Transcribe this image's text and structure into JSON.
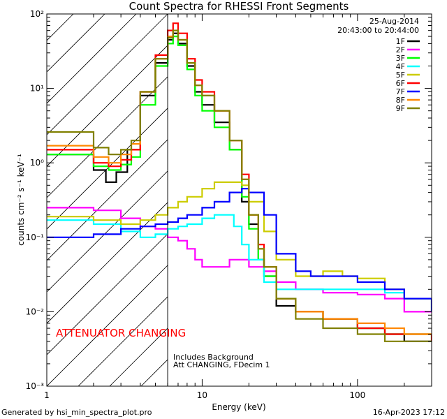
{
  "chart_data": {
    "type": "line",
    "title": "Count Spectra for RHESSI Front Segments",
    "xlabel": "Energy (keV)",
    "ylabel": "counts cm⁻² s⁻¹ keV⁻¹",
    "xscale": "log",
    "yscale": "log",
    "xlim": [
      1,
      300
    ],
    "ylim": [
      0.001,
      100
    ],
    "x_ticks": [
      {
        "value": 1,
        "label": "1"
      },
      {
        "value": 10,
        "label": "10"
      },
      {
        "value": 100,
        "label": "100"
      }
    ],
    "y_ticks": [
      {
        "value": 0.001,
        "label": "10⁻³"
      },
      {
        "value": 0.01,
        "label": "10⁻²"
      },
      {
        "value": 0.1,
        "label": "10⁻¹"
      },
      {
        "value": 1,
        "label": "10⁰"
      },
      {
        "value": 10,
        "label": "10¹"
      },
      {
        "value": 100,
        "label": "10²"
      }
    ],
    "date": "25-Aug-2014",
    "time_range": "20:43:00 to 20:44:00",
    "attenuator_text": "ATTENUATOR CHANGING",
    "background_note": "Includes Background",
    "att_note": "Att CHANGING, FDecim 1",
    "hatched_region_end_kev": 6,
    "series": [
      {
        "name": "1F",
        "color": "#000000",
        "x": [
          1,
          2,
          2.4,
          2.8,
          3.3,
          4,
          5,
          6,
          6.5,
          7,
          8,
          9,
          10,
          12,
          15,
          18,
          20,
          23,
          25,
          30,
          40,
          60,
          100,
          150,
          200,
          300
        ],
        "y": [
          1.3,
          0.8,
          0.55,
          0.75,
          1.5,
          8,
          22,
          45,
          55,
          40,
          20,
          9,
          6,
          3.5,
          1.5,
          0.3,
          0.15,
          0.05,
          0.03,
          0.012,
          0.01,
          0.008,
          0.006,
          0.005,
          0.004,
          0.004
        ]
      },
      {
        "name": "2F",
        "color": "#ff00ff",
        "x": [
          1,
          2,
          3,
          4,
          5,
          6,
          7,
          8,
          9,
          10,
          12,
          15,
          18,
          20,
          25,
          30,
          40,
          60,
          100,
          150,
          200,
          300
        ],
        "y": [
          0.25,
          0.23,
          0.18,
          0.14,
          0.13,
          0.1,
          0.09,
          0.07,
          0.05,
          0.04,
          0.04,
          0.05,
          0.05,
          0.04,
          0.035,
          0.025,
          0.02,
          0.018,
          0.017,
          0.015,
          0.01,
          0.01
        ]
      },
      {
        "name": "3F",
        "color": "#00ff00",
        "x": [
          1,
          2,
          2.5,
          3,
          3.5,
          4,
          5,
          6,
          6.5,
          7,
          8,
          9,
          10,
          12,
          15,
          18,
          20,
          23,
          25,
          30,
          40,
          60,
          100,
          150,
          200,
          300
        ],
        "y": [
          1.3,
          0.9,
          0.8,
          0.95,
          1.2,
          6,
          20,
          40,
          50,
          38,
          18,
          8,
          5,
          3,
          1.5,
          0.35,
          0.13,
          0.05,
          0.03,
          0.015,
          0.01,
          0.008,
          0.006,
          0.005,
          0.005,
          0.004
        ]
      },
      {
        "name": "4F",
        "color": "#00ffff",
        "x": [
          1,
          2,
          3,
          4,
          5,
          6,
          7,
          8,
          10,
          12,
          14,
          16,
          18,
          20,
          25,
          30,
          40,
          60,
          100,
          150,
          200,
          300
        ],
        "y": [
          0.17,
          0.15,
          0.12,
          0.1,
          0.11,
          0.13,
          0.14,
          0.15,
          0.18,
          0.2,
          0.2,
          0.14,
          0.08,
          0.05,
          0.025,
          0.02,
          0.02,
          0.02,
          0.02,
          0.018,
          0.015,
          0.01
        ]
      },
      {
        "name": "5F",
        "color": "#cccc00",
        "x": [
          1,
          2,
          3,
          4,
          5,
          6,
          7,
          8,
          10,
          12,
          15,
          18,
          20,
          25,
          30,
          40,
          50,
          60,
          80,
          100,
          150,
          200,
          300
        ],
        "y": [
          0.19,
          0.17,
          0.15,
          0.17,
          0.2,
          0.25,
          0.3,
          0.35,
          0.45,
          0.55,
          0.55,
          0.5,
          0.3,
          0.12,
          0.05,
          0.03,
          0.03,
          0.035,
          0.03,
          0.028,
          0.02,
          0.015,
          0.01
        ]
      },
      {
        "name": "6F",
        "color": "#ff0000",
        "x": [
          1,
          2,
          2.5,
          3,
          3.5,
          4,
          5,
          6,
          6.5,
          7,
          8,
          9,
          10,
          12,
          15,
          18,
          20,
          23,
          25,
          30,
          40,
          60,
          100,
          150,
          200,
          300
        ],
        "y": [
          1.5,
          1,
          0.9,
          1.1,
          1.5,
          9,
          28,
          60,
          75,
          55,
          25,
          13,
          9,
          5,
          2,
          0.7,
          0.2,
          0.08,
          0.04,
          0.015,
          0.01,
          0.008,
          0.006,
          0.005,
          0.005,
          0.004
        ]
      },
      {
        "name": "7F",
        "color": "#0000ff",
        "x": [
          1,
          2,
          3,
          4,
          5,
          6,
          7,
          8,
          10,
          12,
          15,
          18,
          20,
          25,
          30,
          40,
          50,
          60,
          100,
          150,
          200,
          300
        ],
        "y": [
          0.1,
          0.11,
          0.13,
          0.14,
          0.15,
          0.16,
          0.18,
          0.2,
          0.25,
          0.3,
          0.4,
          0.45,
          0.4,
          0.2,
          0.06,
          0.035,
          0.03,
          0.03,
          0.025,
          0.02,
          0.015,
          0.01
        ]
      },
      {
        "name": "8F",
        "color": "#ff8800",
        "x": [
          1,
          2,
          2.5,
          3,
          3.5,
          4,
          5,
          6,
          6.5,
          7,
          8,
          9,
          10,
          12,
          15,
          18,
          20,
          23,
          25,
          30,
          40,
          60,
          100,
          150,
          200,
          300
        ],
        "y": [
          1.7,
          1.2,
          1,
          1.3,
          1.8,
          9,
          25,
          50,
          60,
          45,
          22,
          11,
          8,
          5,
          2,
          0.6,
          0.2,
          0.07,
          0.04,
          0.015,
          0.01,
          0.008,
          0.007,
          0.006,
          0.005,
          0.005
        ]
      },
      {
        "name": "9F",
        "color": "#808000",
        "x": [
          1,
          2,
          2.5,
          3,
          3.5,
          4,
          5,
          6,
          6.5,
          7,
          8,
          9,
          10,
          12,
          15,
          18,
          20,
          23,
          25,
          30,
          40,
          60,
          100,
          150,
          200,
          300
        ],
        "y": [
          2.6,
          1.6,
          1.3,
          1.5,
          2,
          9,
          25,
          48,
          60,
          45,
          22,
          11,
          8,
          5,
          2,
          0.6,
          0.2,
          0.07,
          0.04,
          0.015,
          0.008,
          0.006,
          0.005,
          0.004,
          0.004,
          0.004
        ]
      }
    ]
  },
  "footer": {
    "generated_by": "Generated by hsi_min_spectra_plot.pro",
    "timestamp": "16-Apr-2023 17:12"
  }
}
